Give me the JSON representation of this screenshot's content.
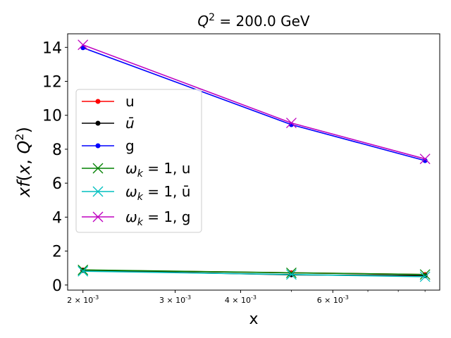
{
  "chart_data": {
    "type": "line",
    "title": "Q^2 = 200.0 GeV",
    "xlabel": "x",
    "ylabel": "xf(x, Q^2)",
    "x_scale": "log",
    "xlim": [
      0.00187,
      0.0096
    ],
    "ylim": [
      -0.3,
      14.8
    ],
    "grid": false,
    "legend_position": "center-left",
    "x_ticks": [
      {
        "value": 0.002,
        "label": "2 × 10^-3"
      },
      {
        "value": 0.003,
        "label": "3 × 10^-3"
      },
      {
        "value": 0.004,
        "label": "4 × 10^-3"
      },
      {
        "value": 0.006,
        "label": "6 × 10^-3"
      }
    ],
    "x_minor_ticks": [
      0.005,
      0.007,
      0.008,
      0.009
    ],
    "y_ticks": [
      0,
      2,
      4,
      6,
      8,
      10,
      12,
      14
    ],
    "x": [
      0.002,
      0.005,
      0.009
    ],
    "series": [
      {
        "name": "u",
        "legend": "u",
        "color": "#ff0000",
        "marker": "dot",
        "values": [
          0.88,
          0.72,
          0.62
        ]
      },
      {
        "name": "ubar",
        "legend": "ū",
        "color": "#000000",
        "marker": "dot",
        "values": [
          0.86,
          0.6,
          0.55
        ]
      },
      {
        "name": "g",
        "legend": "g",
        "color": "#0000ff",
        "marker": "dot",
        "values": [
          13.98,
          9.45,
          7.33
        ]
      },
      {
        "name": "wk1-u",
        "legend": "ω_k = 1, u",
        "color": "#008000",
        "marker": "x",
        "values": [
          0.89,
          0.72,
          0.62
        ]
      },
      {
        "name": "wk1-ubar",
        "legend": "ω_k = 1, ū",
        "color": "#00bfbf",
        "marker": "x",
        "values": [
          0.81,
          0.62,
          0.49
        ]
      },
      {
        "name": "wk1-g",
        "legend": "ω_k = 1, g",
        "color": "#bf00bf",
        "marker": "x",
        "values": [
          14.15,
          9.55,
          7.43
        ]
      }
    ]
  }
}
